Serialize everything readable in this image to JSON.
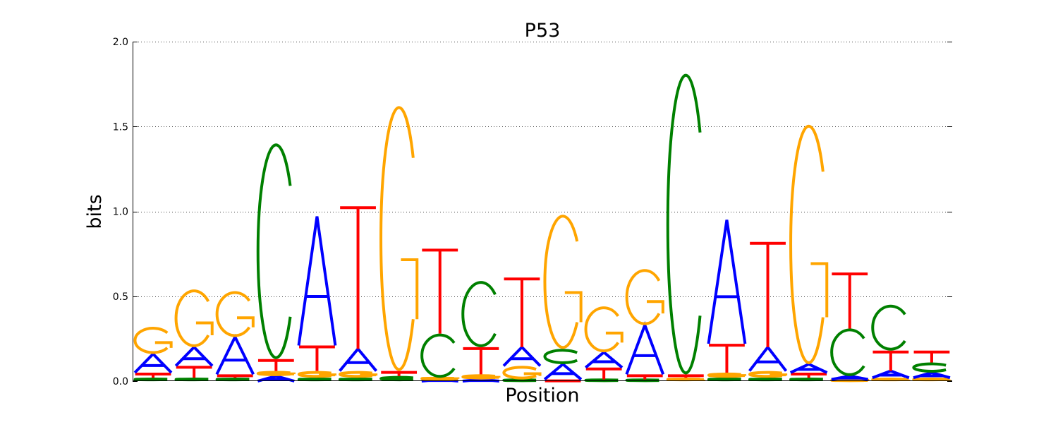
{
  "chart_data": {
    "type": "sequence-logo",
    "title": "P53",
    "xlabel": "Position",
    "ylabel": "bits",
    "ylim": [
      0,
      2.0
    ],
    "yticks": [
      {
        "value": 0.0,
        "label": "0.0"
      },
      {
        "value": 0.5,
        "label": "0.5"
      },
      {
        "value": 1.0,
        "label": "1.0"
      },
      {
        "value": 1.5,
        "label": "1.5"
      },
      {
        "value": 2.0,
        "label": "2.0"
      }
    ],
    "grid": true,
    "colors": {
      "A": "#0000ff",
      "C": "#008000",
      "G": "#ffa500",
      "T": "#ff0000"
    },
    "positions": [
      {
        "index": 1,
        "stack": [
          {
            "base": "A",
            "height": 0.11
          },
          {
            "base": "C",
            "height": 0.02
          },
          {
            "base": "G",
            "height": 0.16
          },
          {
            "base": "T",
            "height": 0.03
          }
        ]
      },
      {
        "index": 2,
        "stack": [
          {
            "base": "A",
            "height": 0.11
          },
          {
            "base": "C",
            "height": 0.02
          },
          {
            "base": "G",
            "height": 0.34
          },
          {
            "base": "T",
            "height": 0.07
          }
        ]
      },
      {
        "index": 3,
        "stack": [
          {
            "base": "A",
            "height": 0.22
          },
          {
            "base": "C",
            "height": 0.02
          },
          {
            "base": "G",
            "height": 0.27
          },
          {
            "base": "T",
            "height": 0.02
          }
        ]
      },
      {
        "index": 4,
        "stack": [
          {
            "base": "A",
            "height": 0.03
          },
          {
            "base": "C",
            "height": 1.27
          },
          {
            "base": "G",
            "height": 0.03
          },
          {
            "base": "T",
            "height": 0.07
          }
        ]
      },
      {
        "index": 5,
        "stack": [
          {
            "base": "A",
            "height": 0.76
          },
          {
            "base": "C",
            "height": 0.02
          },
          {
            "base": "G",
            "height": 0.04
          },
          {
            "base": "T",
            "height": 0.15
          }
        ]
      },
      {
        "index": 6,
        "stack": [
          {
            "base": "A",
            "height": 0.13
          },
          {
            "base": "C",
            "height": 0.02
          },
          {
            "base": "G",
            "height": 0.04
          },
          {
            "base": "T",
            "height": 0.84
          }
        ]
      },
      {
        "index": 7,
        "stack": [
          {
            "base": "A",
            "height": 0.0
          },
          {
            "base": "C",
            "height": 0.03
          },
          {
            "base": "G",
            "height": 1.56
          },
          {
            "base": "T",
            "height": 0.03
          }
        ]
      },
      {
        "index": 8,
        "stack": [
          {
            "base": "A",
            "height": 0.01
          },
          {
            "base": "C",
            "height": 0.26
          },
          {
            "base": "G",
            "height": 0.01
          },
          {
            "base": "T",
            "height": 0.5
          }
        ]
      },
      {
        "index": 9,
        "stack": [
          {
            "base": "A",
            "height": 0.01
          },
          {
            "base": "C",
            "height": 0.39
          },
          {
            "base": "G",
            "height": 0.03
          },
          {
            "base": "T",
            "height": 0.16
          }
        ]
      },
      {
        "index": 10,
        "stack": [
          {
            "base": "A",
            "height": 0.11
          },
          {
            "base": "C",
            "height": 0.01
          },
          {
            "base": "G",
            "height": 0.08
          },
          {
            "base": "T",
            "height": 0.41
          }
        ]
      },
      {
        "index": 11,
        "stack": [
          {
            "base": "A",
            "height": 0.09
          },
          {
            "base": "C",
            "height": 0.09
          },
          {
            "base": "G",
            "height": 0.79
          },
          {
            "base": "T",
            "height": 0.01
          }
        ]
      },
      {
        "index": 12,
        "stack": [
          {
            "base": "A",
            "height": 0.09
          },
          {
            "base": "C",
            "height": 0.01
          },
          {
            "base": "G",
            "height": 0.27
          },
          {
            "base": "T",
            "height": 0.07
          }
        ]
      },
      {
        "index": 13,
        "stack": [
          {
            "base": "A",
            "height": 0.29
          },
          {
            "base": "C",
            "height": 0.01
          },
          {
            "base": "G",
            "height": 0.33
          },
          {
            "base": "T",
            "height": 0.03
          }
        ]
      },
      {
        "index": 14,
        "stack": [
          {
            "base": "A",
            "height": 0.0
          },
          {
            "base": "C",
            "height": 1.77
          },
          {
            "base": "G",
            "height": 0.02
          },
          {
            "base": "T",
            "height": 0.02
          }
        ]
      },
      {
        "index": 15,
        "stack": [
          {
            "base": "A",
            "height": 0.73
          },
          {
            "base": "C",
            "height": 0.02
          },
          {
            "base": "G",
            "height": 0.03
          },
          {
            "base": "T",
            "height": 0.17
          }
        ]
      },
      {
        "index": 16,
        "stack": [
          {
            "base": "A",
            "height": 0.14
          },
          {
            "base": "C",
            "height": 0.02
          },
          {
            "base": "G",
            "height": 0.04
          },
          {
            "base": "T",
            "height": 0.62
          }
        ]
      },
      {
        "index": 17,
        "stack": [
          {
            "base": "A",
            "height": 0.05
          },
          {
            "base": "C",
            "height": 0.02
          },
          {
            "base": "G",
            "height": 1.41
          },
          {
            "base": "T",
            "height": 0.03
          }
        ]
      },
      {
        "index": 18,
        "stack": [
          {
            "base": "A",
            "height": 0.02
          },
          {
            "base": "C",
            "height": 0.28
          },
          {
            "base": "G",
            "height": 0.01
          },
          {
            "base": "T",
            "height": 0.33
          }
        ]
      },
      {
        "index": 19,
        "stack": [
          {
            "base": "A",
            "height": 0.04
          },
          {
            "base": "C",
            "height": 0.27
          },
          {
            "base": "G",
            "height": 0.02
          },
          {
            "base": "T",
            "height": 0.12
          }
        ]
      },
      {
        "index": 20,
        "stack": [
          {
            "base": "A",
            "height": 0.03
          },
          {
            "base": "C",
            "height": 0.06
          },
          {
            "base": "G",
            "height": 0.02
          },
          {
            "base": "T",
            "height": 0.07
          }
        ]
      }
    ]
  }
}
